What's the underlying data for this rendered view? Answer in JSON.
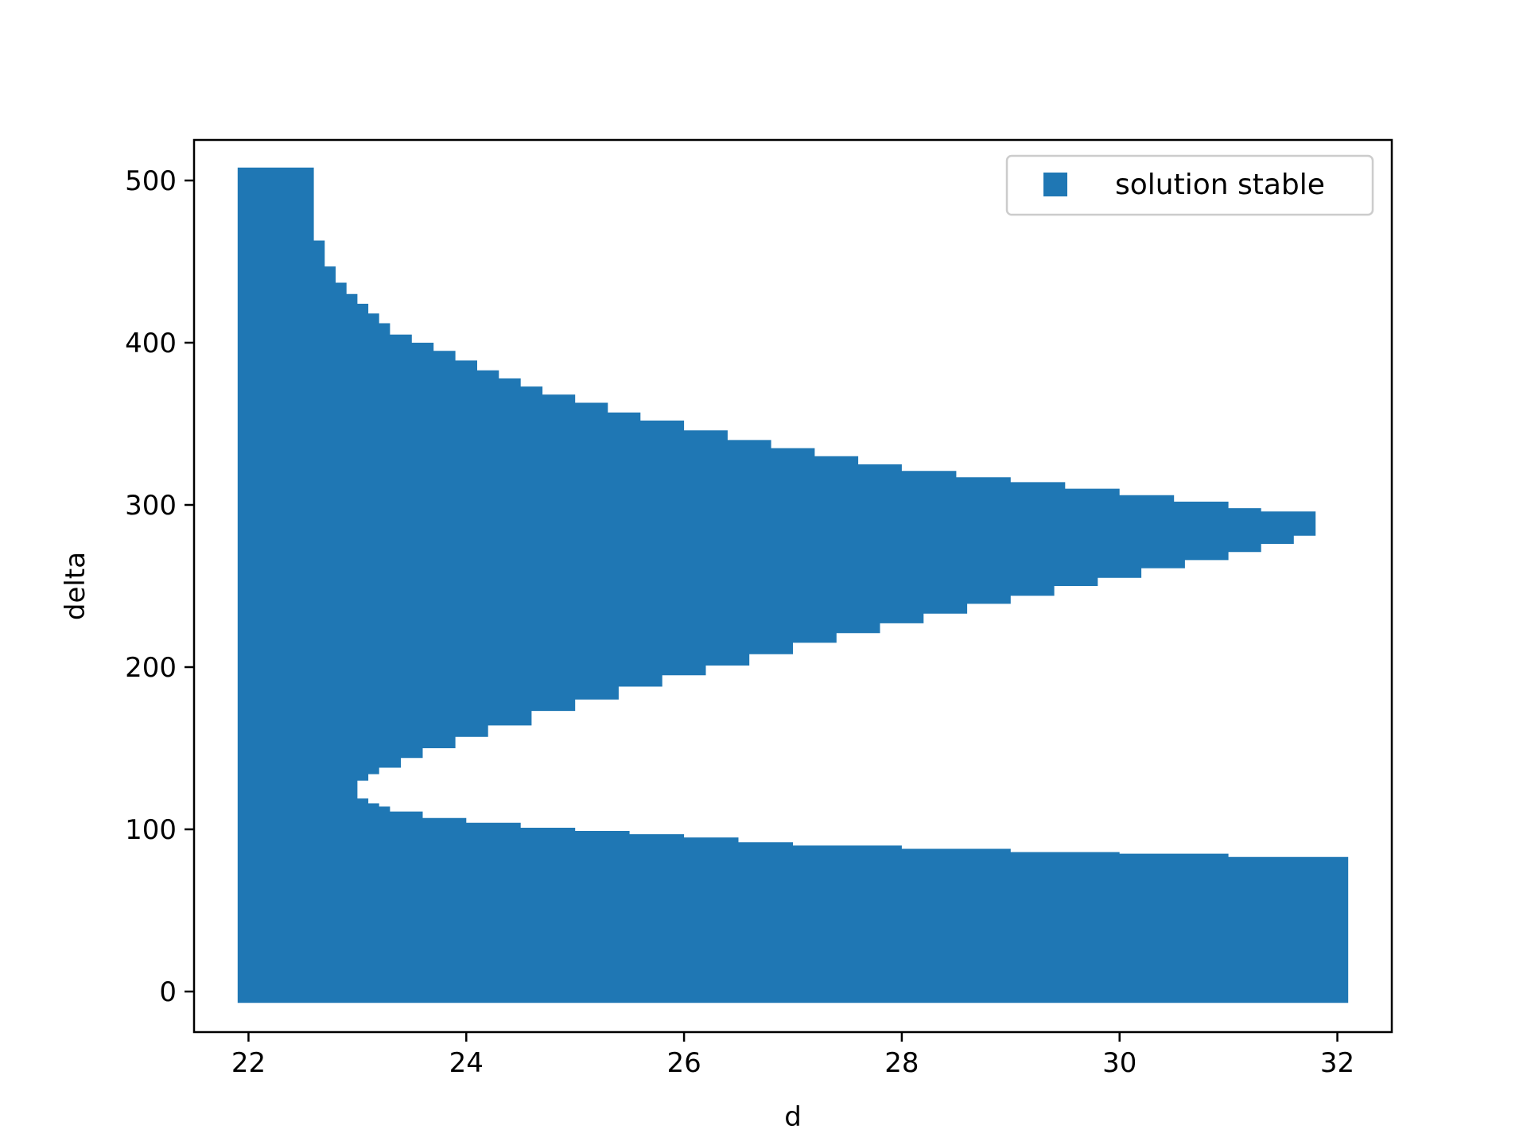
{
  "chart_data": {
    "type": "area",
    "title": "",
    "xlabel": "d",
    "ylabel": "delta",
    "xlim": [
      21.5,
      32.5
    ],
    "ylim": [
      -25,
      525
    ],
    "xticks": [
      22,
      24,
      26,
      28,
      30,
      32
    ],
    "yticks": [
      0,
      100,
      200,
      300,
      400,
      500
    ],
    "grid": false,
    "legend": {
      "position": "top-right",
      "entries": [
        "solution stable"
      ]
    },
    "color": "#1f77b4",
    "delta_min": -7,
    "top_boundary": [
      [
        21.9,
        508
      ],
      [
        22.6,
        508
      ],
      [
        22.6,
        463
      ],
      [
        22.7,
        447
      ],
      [
        22.8,
        437
      ],
      [
        22.9,
        430
      ],
      [
        23.0,
        424
      ],
      [
        23.1,
        418
      ],
      [
        23.2,
        412
      ],
      [
        23.3,
        405
      ],
      [
        23.5,
        400
      ],
      [
        23.7,
        395
      ],
      [
        23.9,
        389
      ],
      [
        24.1,
        383
      ],
      [
        24.3,
        378
      ],
      [
        24.5,
        373
      ],
      [
        24.7,
        368
      ],
      [
        25.0,
        363
      ],
      [
        25.3,
        357
      ],
      [
        25.6,
        352
      ],
      [
        26.0,
        346
      ],
      [
        26.4,
        340
      ],
      [
        26.8,
        335
      ],
      [
        27.2,
        330
      ],
      [
        27.6,
        325
      ],
      [
        28.0,
        321
      ],
      [
        28.5,
        317
      ],
      [
        29.0,
        314
      ],
      [
        29.5,
        310
      ],
      [
        30.0,
        306
      ],
      [
        30.5,
        302
      ],
      [
        31.0,
        298
      ],
      [
        31.3,
        296
      ],
      [
        31.8,
        296
      ]
    ],
    "bottom_boundary": [
      [
        31.8,
        282
      ],
      [
        31.6,
        281
      ],
      [
        31.3,
        276
      ],
      [
        31.0,
        271
      ],
      [
        30.6,
        266
      ],
      [
        30.2,
        261
      ],
      [
        29.8,
        255
      ],
      [
        29.4,
        250
      ],
      [
        29.0,
        244
      ],
      [
        28.6,
        239
      ],
      [
        28.2,
        233
      ],
      [
        27.8,
        227
      ],
      [
        27.4,
        221
      ],
      [
        27.0,
        215
      ],
      [
        26.6,
        208
      ],
      [
        26.2,
        201
      ],
      [
        25.8,
        195
      ],
      [
        25.4,
        188
      ],
      [
        25.0,
        180
      ],
      [
        24.6,
        173
      ],
      [
        24.2,
        164
      ],
      [
        23.9,
        157
      ],
      [
        23.6,
        150
      ],
      [
        23.4,
        144
      ],
      [
        23.2,
        138
      ],
      [
        23.1,
        134
      ],
      [
        23.0,
        130
      ],
      [
        23.0,
        124
      ],
      [
        23.1,
        119
      ],
      [
        23.2,
        116
      ],
      [
        23.3,
        114
      ],
      [
        23.6,
        111
      ],
      [
        24.0,
        107
      ],
      [
        24.5,
        104
      ],
      [
        25.0,
        101
      ],
      [
        25.5,
        99
      ],
      [
        26.0,
        97
      ],
      [
        26.5,
        95
      ],
      [
        27.0,
        92
      ],
      [
        28.0,
        90
      ],
      [
        29.0,
        88
      ],
      [
        30.0,
        86
      ],
      [
        31.0,
        85
      ],
      [
        31.5,
        83
      ],
      [
        32.1,
        83
      ]
    ]
  }
}
